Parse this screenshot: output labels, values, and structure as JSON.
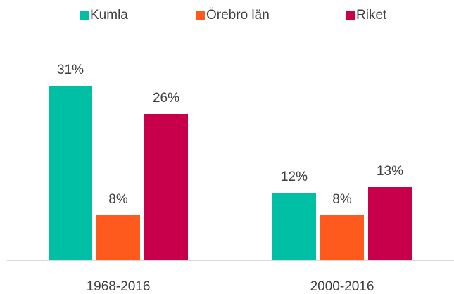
{
  "chart_data": {
    "type": "bar",
    "categories": [
      "1968-2016",
      "2000-2016"
    ],
    "series": [
      {
        "name": "Kumla",
        "color": "#00bfa5",
        "values": [
          31,
          12
        ],
        "value_labels": [
          "31%",
          "12%"
        ]
      },
      {
        "name": "Örebro län",
        "color": "#ff5a1e",
        "values": [
          8,
          8
        ],
        "value_labels": [
          "8%",
          "8%"
        ]
      },
      {
        "name": "Riket",
        "color": "#c8004b",
        "values": [
          26,
          13
        ],
        "value_labels": [
          "26%",
          "13%"
        ]
      }
    ]
  }
}
